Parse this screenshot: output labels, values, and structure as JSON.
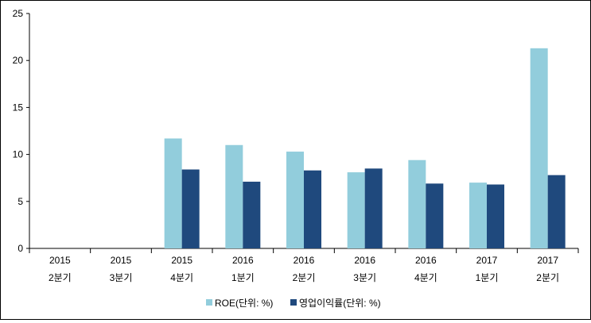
{
  "chart_data": {
    "type": "bar",
    "categories": [
      [
        "2015",
        "2분기"
      ],
      [
        "2015",
        "3분기"
      ],
      [
        "2015",
        "4분기"
      ],
      [
        "2016",
        "1분기"
      ],
      [
        "2016",
        "2분기"
      ],
      [
        "2016",
        "3분기"
      ],
      [
        "2016",
        "4분기"
      ],
      [
        "2017",
        "1분기"
      ],
      [
        "2017",
        "2분기"
      ]
    ],
    "series": [
      {
        "name": "ROE(단위: %)",
        "color": "#92CDDC",
        "values": [
          null,
          null,
          11.7,
          11.0,
          10.3,
          8.1,
          9.4,
          7.0,
          21.3
        ]
      },
      {
        "name": "영업이익률(단위: %)",
        "color": "#1F497D",
        "values": [
          null,
          null,
          8.4,
          7.1,
          8.3,
          8.5,
          6.9,
          6.8,
          7.8
        ]
      }
    ],
    "ylim": [
      0,
      25
    ],
    "yticks": [
      "0",
      "5",
      "10",
      "15",
      "20",
      "25"
    ],
    "title": "",
    "xlabel": "",
    "ylabel": "",
    "grid": false,
    "legend_position": "bottom"
  }
}
